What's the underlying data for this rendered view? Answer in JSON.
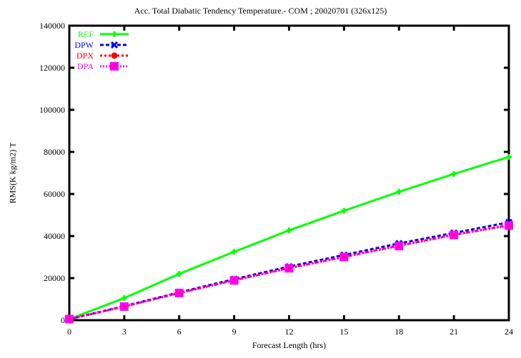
{
  "chart_data": {
    "type": "line",
    "title": "Acc. Total Diabatic Tendency Temperature.- COM ; 20020701 (326x125)",
    "xlabel": "Forecast Length (hrs)",
    "ylabel": "RMS(K kg/m2) T",
    "x": [
      0,
      3,
      6,
      9,
      12,
      15,
      18,
      21,
      24
    ],
    "xticks": [
      "0",
      "3",
      "6",
      "9",
      "12",
      "15",
      "18",
      "21",
      "24"
    ],
    "yticks": [
      "0",
      "20000",
      "40000",
      "60000",
      "80000",
      "100000",
      "120000",
      "140000"
    ],
    "xlim": [
      0,
      24
    ],
    "ylim": [
      0,
      140000
    ],
    "grid": false,
    "legend_position": "top-left",
    "series": [
      {
        "name": "REF",
        "color": "#00ff00",
        "marker": "plus",
        "dash": "solid",
        "values": [
          500,
          10500,
          22000,
          32500,
          42700,
          52000,
          61000,
          69500,
          77600
        ]
      },
      {
        "name": "DPW",
        "color": "#0000ff",
        "marker": "x",
        "dash": "dashed",
        "values": [
          500,
          6700,
          13200,
          19500,
          25500,
          31000,
          36500,
          41500,
          46500
        ]
      },
      {
        "name": "DPX",
        "color": "#ff0000",
        "marker": "circle",
        "dash": "dotted",
        "values": [
          500,
          6500,
          12900,
          19000,
          24800,
          30100,
          35500,
          40600,
          45200
        ]
      },
      {
        "name": "DPA",
        "color": "#ff00ff",
        "marker": "square",
        "dash": "dotted-fine",
        "values": [
          500,
          6500,
          12900,
          18900,
          24700,
          30000,
          35300,
          40500,
          45000
        ]
      }
    ]
  }
}
